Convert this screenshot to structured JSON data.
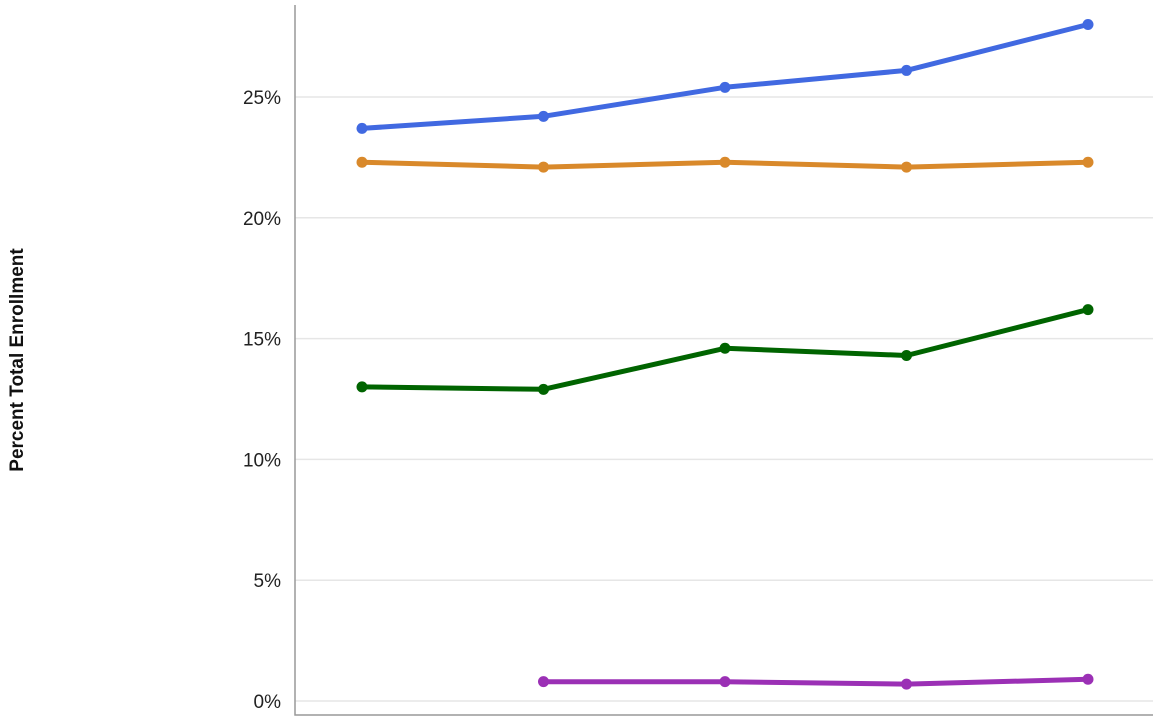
{
  "chart_data": {
    "type": "line",
    "title": "",
    "xlabel": "",
    "ylabel": "Percent Total Enrollment",
    "ylim": [
      0,
      28.5
    ],
    "y_ticks": [
      0,
      5,
      10,
      15,
      20,
      25
    ],
    "y_tick_labels": [
      "0%",
      "5%",
      "10%",
      "15%",
      "20%",
      "25%"
    ],
    "grid": true,
    "legend": "none",
    "x": [
      1,
      2,
      3,
      4,
      5
    ],
    "series": [
      {
        "color": "#4169e1",
        "values": [
          23.7,
          24.2,
          25.4,
          26.1,
          28.0
        ]
      },
      {
        "color": "#d9892b",
        "values": [
          22.3,
          22.1,
          22.3,
          22.1,
          22.3
        ]
      },
      {
        "color": "#006400",
        "values": [
          13.0,
          12.9,
          14.6,
          14.3,
          16.2
        ]
      },
      {
        "color": "#9b30b5",
        "values": [
          null,
          0.8,
          0.8,
          0.7,
          0.9
        ]
      }
    ]
  }
}
